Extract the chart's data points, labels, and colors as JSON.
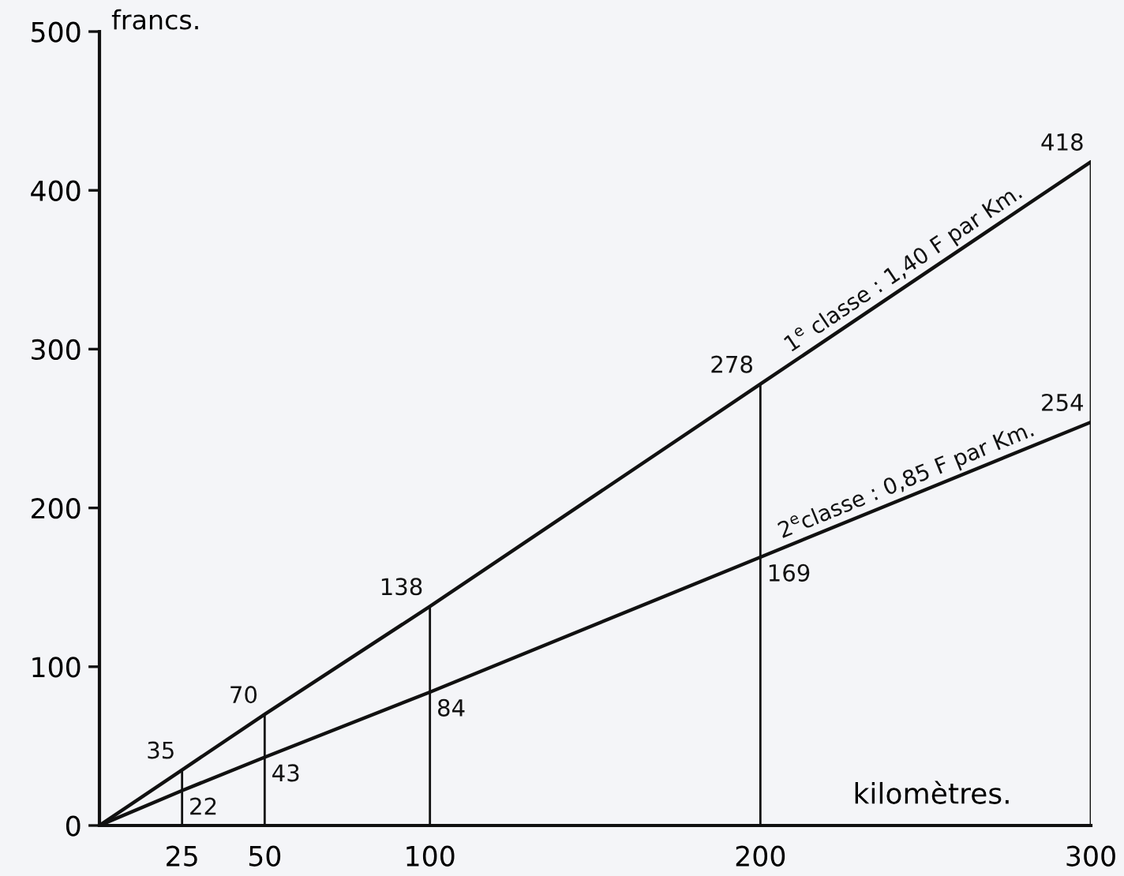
{
  "chart_data": {
    "type": "line",
    "xlabel": "kilomètres.",
    "ylabel": "francs.",
    "xlim": [
      0,
      300
    ],
    "xticks": [
      25,
      50,
      100,
      200,
      300
    ],
    "ylim": [
      0,
      500
    ],
    "yticks": [
      0,
      100,
      200,
      300,
      400,
      500
    ],
    "marker": "none",
    "line_style": "solid",
    "series": [
      {
        "name": "1$^{e}$ classe : 1,40 F par Km.",
        "color": "#111111",
        "x": [
          0,
          25,
          50,
          100,
          200,
          300
        ],
        "values": [
          0,
          35,
          70,
          138,
          278,
          418
        ],
        "value_labels": [
          null,
          "35",
          "70",
          "138",
          "278",
          "418"
        ]
      },
      {
        "name": "2$^{e}$classe : 0,85 F par Km.",
        "color": "#111111",
        "x": [
          0,
          25,
          50,
          100,
          200,
          300
        ],
        "values": [
          0,
          22,
          43,
          84,
          169,
          254
        ],
        "value_labels": [
          null,
          "22",
          "43",
          "84",
          "169",
          "254"
        ]
      },
      {
        "type": "bar",
        "color": "#111111",
        "x": [
          25,
          50,
          100,
          200,
          300
        ],
        "values": [
          35,
          70,
          138,
          278,
          418
        ]
      }
    ]
  }
}
